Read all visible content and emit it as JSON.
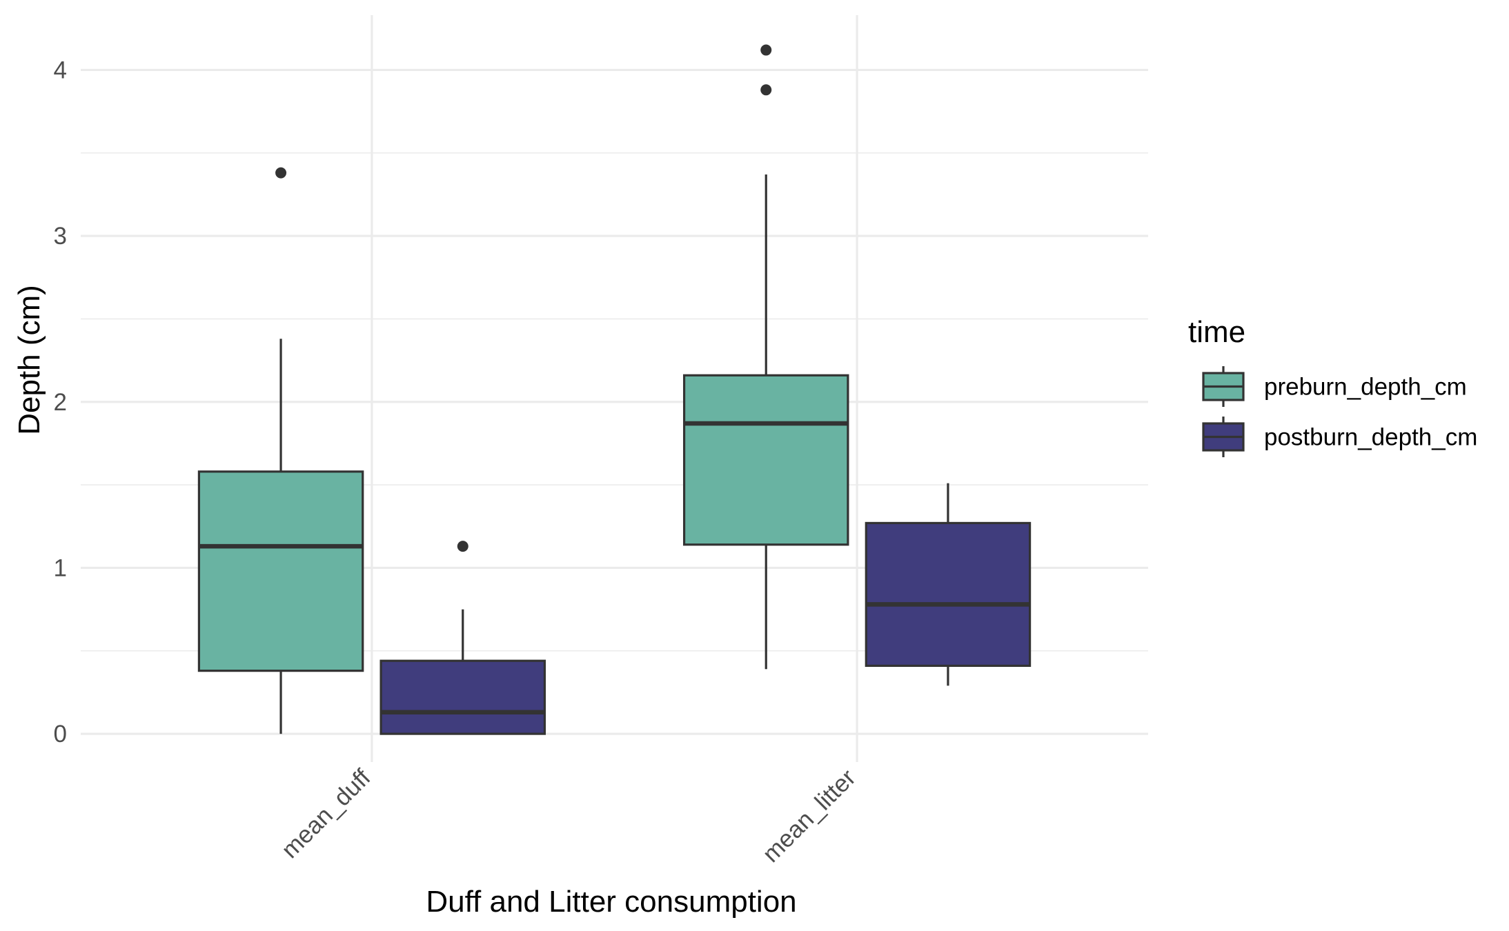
{
  "chart_data": {
    "type": "boxplot",
    "title": "",
    "xlabel": "Duff and Litter consumption",
    "ylabel": "Depth (cm)",
    "categories": [
      "mean_duff",
      "mean_litter"
    ],
    "ylim": [
      -0.17,
      4.33
    ],
    "yticks": [
      0,
      1,
      2,
      3,
      4
    ],
    "grid": true,
    "legend": {
      "title": "time",
      "position": "right",
      "entries": [
        "preburn_depth_cm",
        "postburn_depth_cm"
      ]
    },
    "colors": {
      "preburn_depth_cm": "#69b3a2",
      "postburn_depth_cm": "#403d7d"
    },
    "series": [
      {
        "name": "preburn_depth_cm",
        "boxes": [
          {
            "category": "mean_duff",
            "whisker_low": 0.0,
            "q1": 0.38,
            "median": 1.13,
            "q3": 1.58,
            "whisker_high": 2.38,
            "outliers": [
              3.38
            ]
          },
          {
            "category": "mean_litter",
            "whisker_low": 0.39,
            "q1": 1.14,
            "median": 1.87,
            "q3": 2.16,
            "whisker_high": 3.37,
            "outliers": [
              3.88,
              4.12
            ]
          }
        ]
      },
      {
        "name": "postburn_depth_cm",
        "boxes": [
          {
            "category": "mean_duff",
            "whisker_low": 0.0,
            "q1": 0.0,
            "median": 0.13,
            "q3": 0.44,
            "whisker_high": 0.75,
            "outliers": [
              1.13
            ]
          },
          {
            "category": "mean_litter",
            "whisker_low": 0.29,
            "q1": 0.41,
            "median": 0.78,
            "q3": 1.27,
            "whisker_high": 1.51,
            "outliers": []
          }
        ]
      }
    ]
  }
}
